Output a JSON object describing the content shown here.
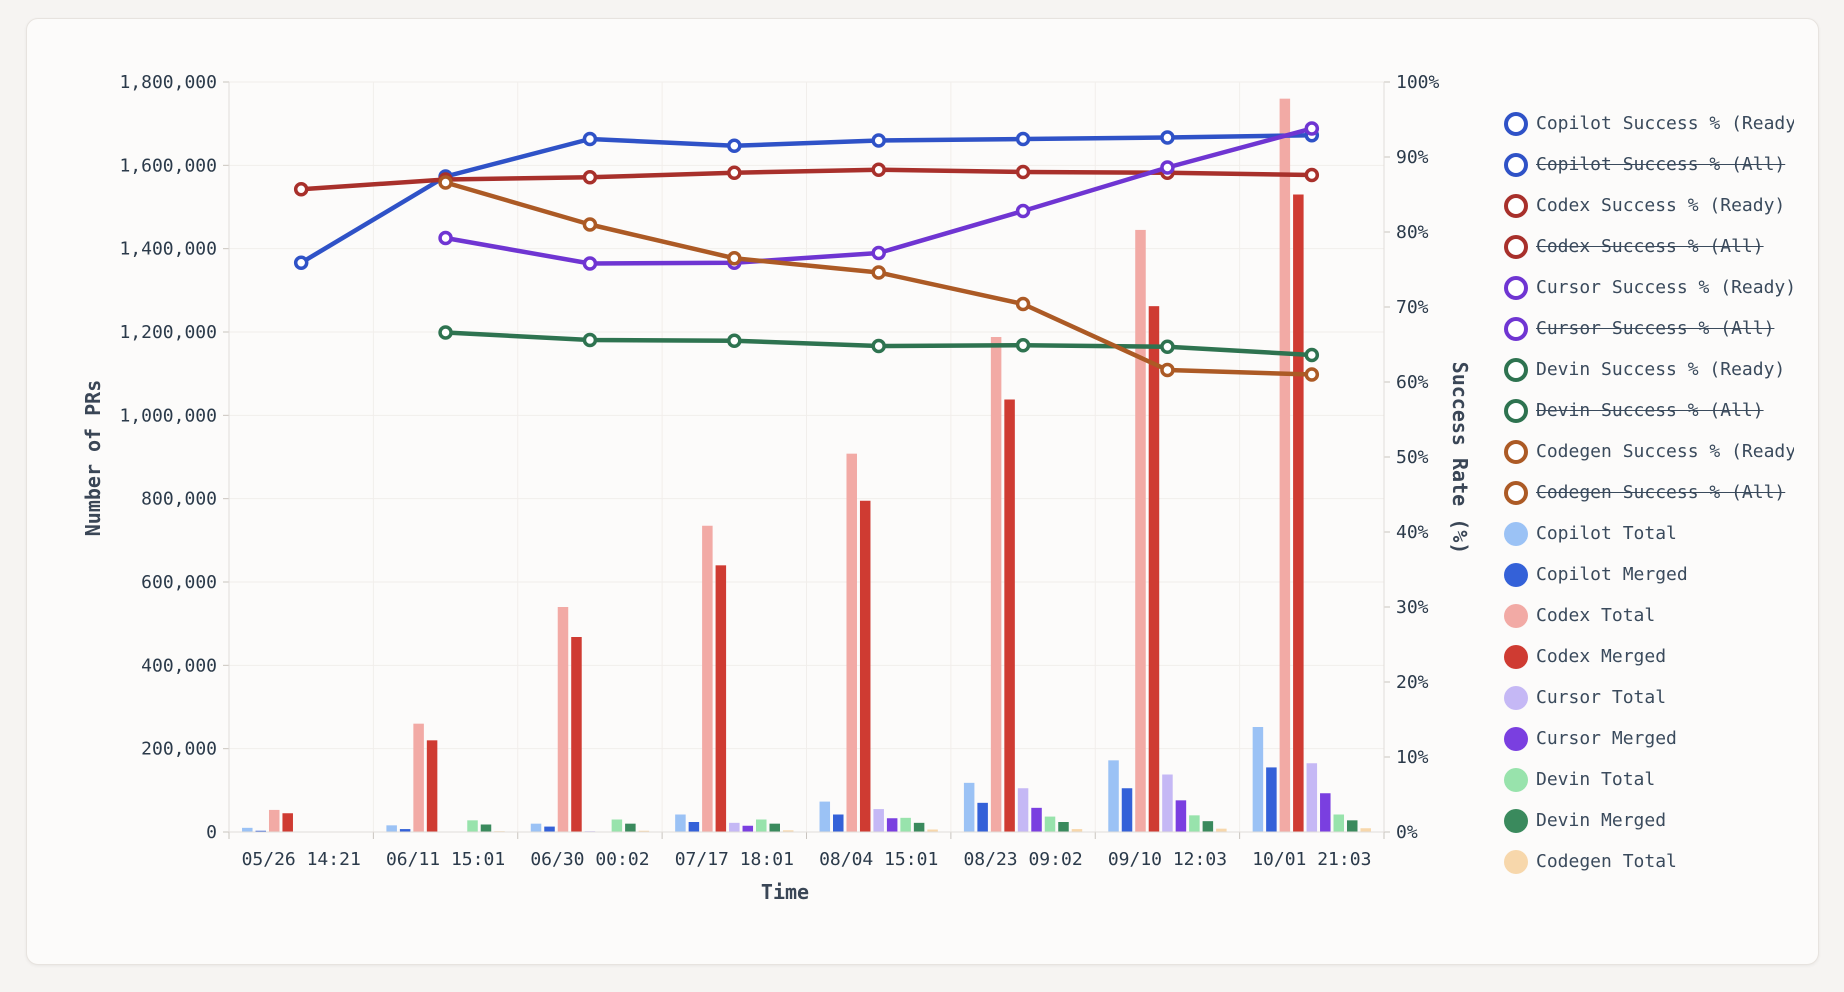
{
  "chart_data": {
    "type": "bar",
    "x_title": "Time",
    "y_left_title": "Number of PRs",
    "y_right_title": "Success Rate (%)",
    "categories": [
      "05/26 14:21",
      "06/11 15:01",
      "06/30 00:02",
      "07/17 18:01",
      "08/04 15:01",
      "08/23 09:02",
      "09/10 12:03",
      "10/01 21:03"
    ],
    "y_left_ticks": [
      "0",
      "200,000",
      "400,000",
      "600,000",
      "800,000",
      "1,000,000",
      "1,200,000",
      "1,400,000",
      "1,600,000",
      "1,800,000"
    ],
    "y_right_ticks": [
      "0%",
      "10%",
      "20%",
      "30%",
      "40%",
      "50%",
      "60%",
      "70%",
      "80%",
      "90%",
      "100%"
    ],
    "ylim_left": [
      0,
      1800000
    ],
    "ylim_right": [
      0,
      100
    ],
    "grid": true,
    "legend_position": "right",
    "bar_series": [
      {
        "name": "Copilot Total",
        "color": "#9bc2f5",
        "values": [
          10000,
          16000,
          20000,
          42000,
          73000,
          118000,
          172000,
          252000
        ]
      },
      {
        "name": "Copilot Merged",
        "color": "#3461d8",
        "values": [
          3000,
          7000,
          13000,
          24000,
          42000,
          70000,
          105000,
          155000
        ]
      },
      {
        "name": "Codex Total",
        "color": "#f2aaa5",
        "values": [
          53000,
          260000,
          540000,
          735000,
          908000,
          1188000,
          1445000,
          1760000
        ]
      },
      {
        "name": "Codex Merged",
        "color": "#cf3b32",
        "values": [
          45000,
          220000,
          468000,
          640000,
          795000,
          1038000,
          1262000,
          1530000
        ]
      },
      {
        "name": "Cursor Total",
        "color": "#c5b8f5",
        "values": [
          0,
          0,
          2000,
          22000,
          55000,
          105000,
          138000,
          165000
        ]
      },
      {
        "name": "Cursor Merged",
        "color": "#7a3fe0",
        "values": [
          0,
          0,
          1000,
          15000,
          33000,
          58000,
          76000,
          93000
        ]
      },
      {
        "name": "Devin Total",
        "color": "#98e3ac",
        "values": [
          0,
          28000,
          30000,
          30000,
          34000,
          37000,
          40000,
          42000
        ]
      },
      {
        "name": "Devin Merged",
        "color": "#3a8a5d",
        "values": [
          0,
          18000,
          20000,
          20000,
          22000,
          24000,
          26000,
          28000
        ]
      },
      {
        "name": "Codegen Total",
        "color": "#f7d7ab",
        "values": [
          0,
          2000,
          3000,
          4000,
          6000,
          7000,
          8000,
          9000
        ]
      }
    ],
    "line_series": [
      {
        "name": "Copilot Success % (Ready)",
        "color": "#2f52c7",
        "hidden": false,
        "values": [
          75.9,
          87.4,
          92.4,
          91.5,
          92.2,
          92.4,
          92.6,
          92.9
        ]
      },
      {
        "name": "Copilot Success % (All)",
        "color": "#2f52c7",
        "hidden": true,
        "values": []
      },
      {
        "name": "Codex Success % (Ready)",
        "color": "#a8302b",
        "hidden": false,
        "values": [
          85.7,
          87.0,
          87.3,
          87.9,
          88.3,
          88.0,
          87.9,
          87.6
        ]
      },
      {
        "name": "Codex Success % (All)",
        "color": "#a8302b",
        "hidden": true,
        "values": []
      },
      {
        "name": "Cursor Success % (Ready)",
        "color": "#6f35d2",
        "hidden": false,
        "values": [
          null,
          79.2,
          75.8,
          75.9,
          77.2,
          82.8,
          88.6,
          93.8
        ]
      },
      {
        "name": "Cursor Success % (All)",
        "color": "#6f35d2",
        "hidden": true,
        "values": []
      },
      {
        "name": "Devin Success % (Ready)",
        "color": "#2e7350",
        "hidden": false,
        "values": [
          null,
          66.6,
          65.6,
          65.5,
          64.8,
          64.9,
          64.7,
          63.6
        ]
      },
      {
        "name": "Devin Success % (All)",
        "color": "#2e7350",
        "hidden": true,
        "values": []
      },
      {
        "name": "Codegen Success % (Ready)",
        "color": "#ac5a25",
        "hidden": false,
        "values": [
          null,
          86.6,
          81.0,
          76.5,
          74.6,
          70.4,
          61.6,
          61.0
        ]
      },
      {
        "name": "Codegen Success % (All)",
        "color": "#ac5a25",
        "hidden": true,
        "values": []
      }
    ]
  }
}
